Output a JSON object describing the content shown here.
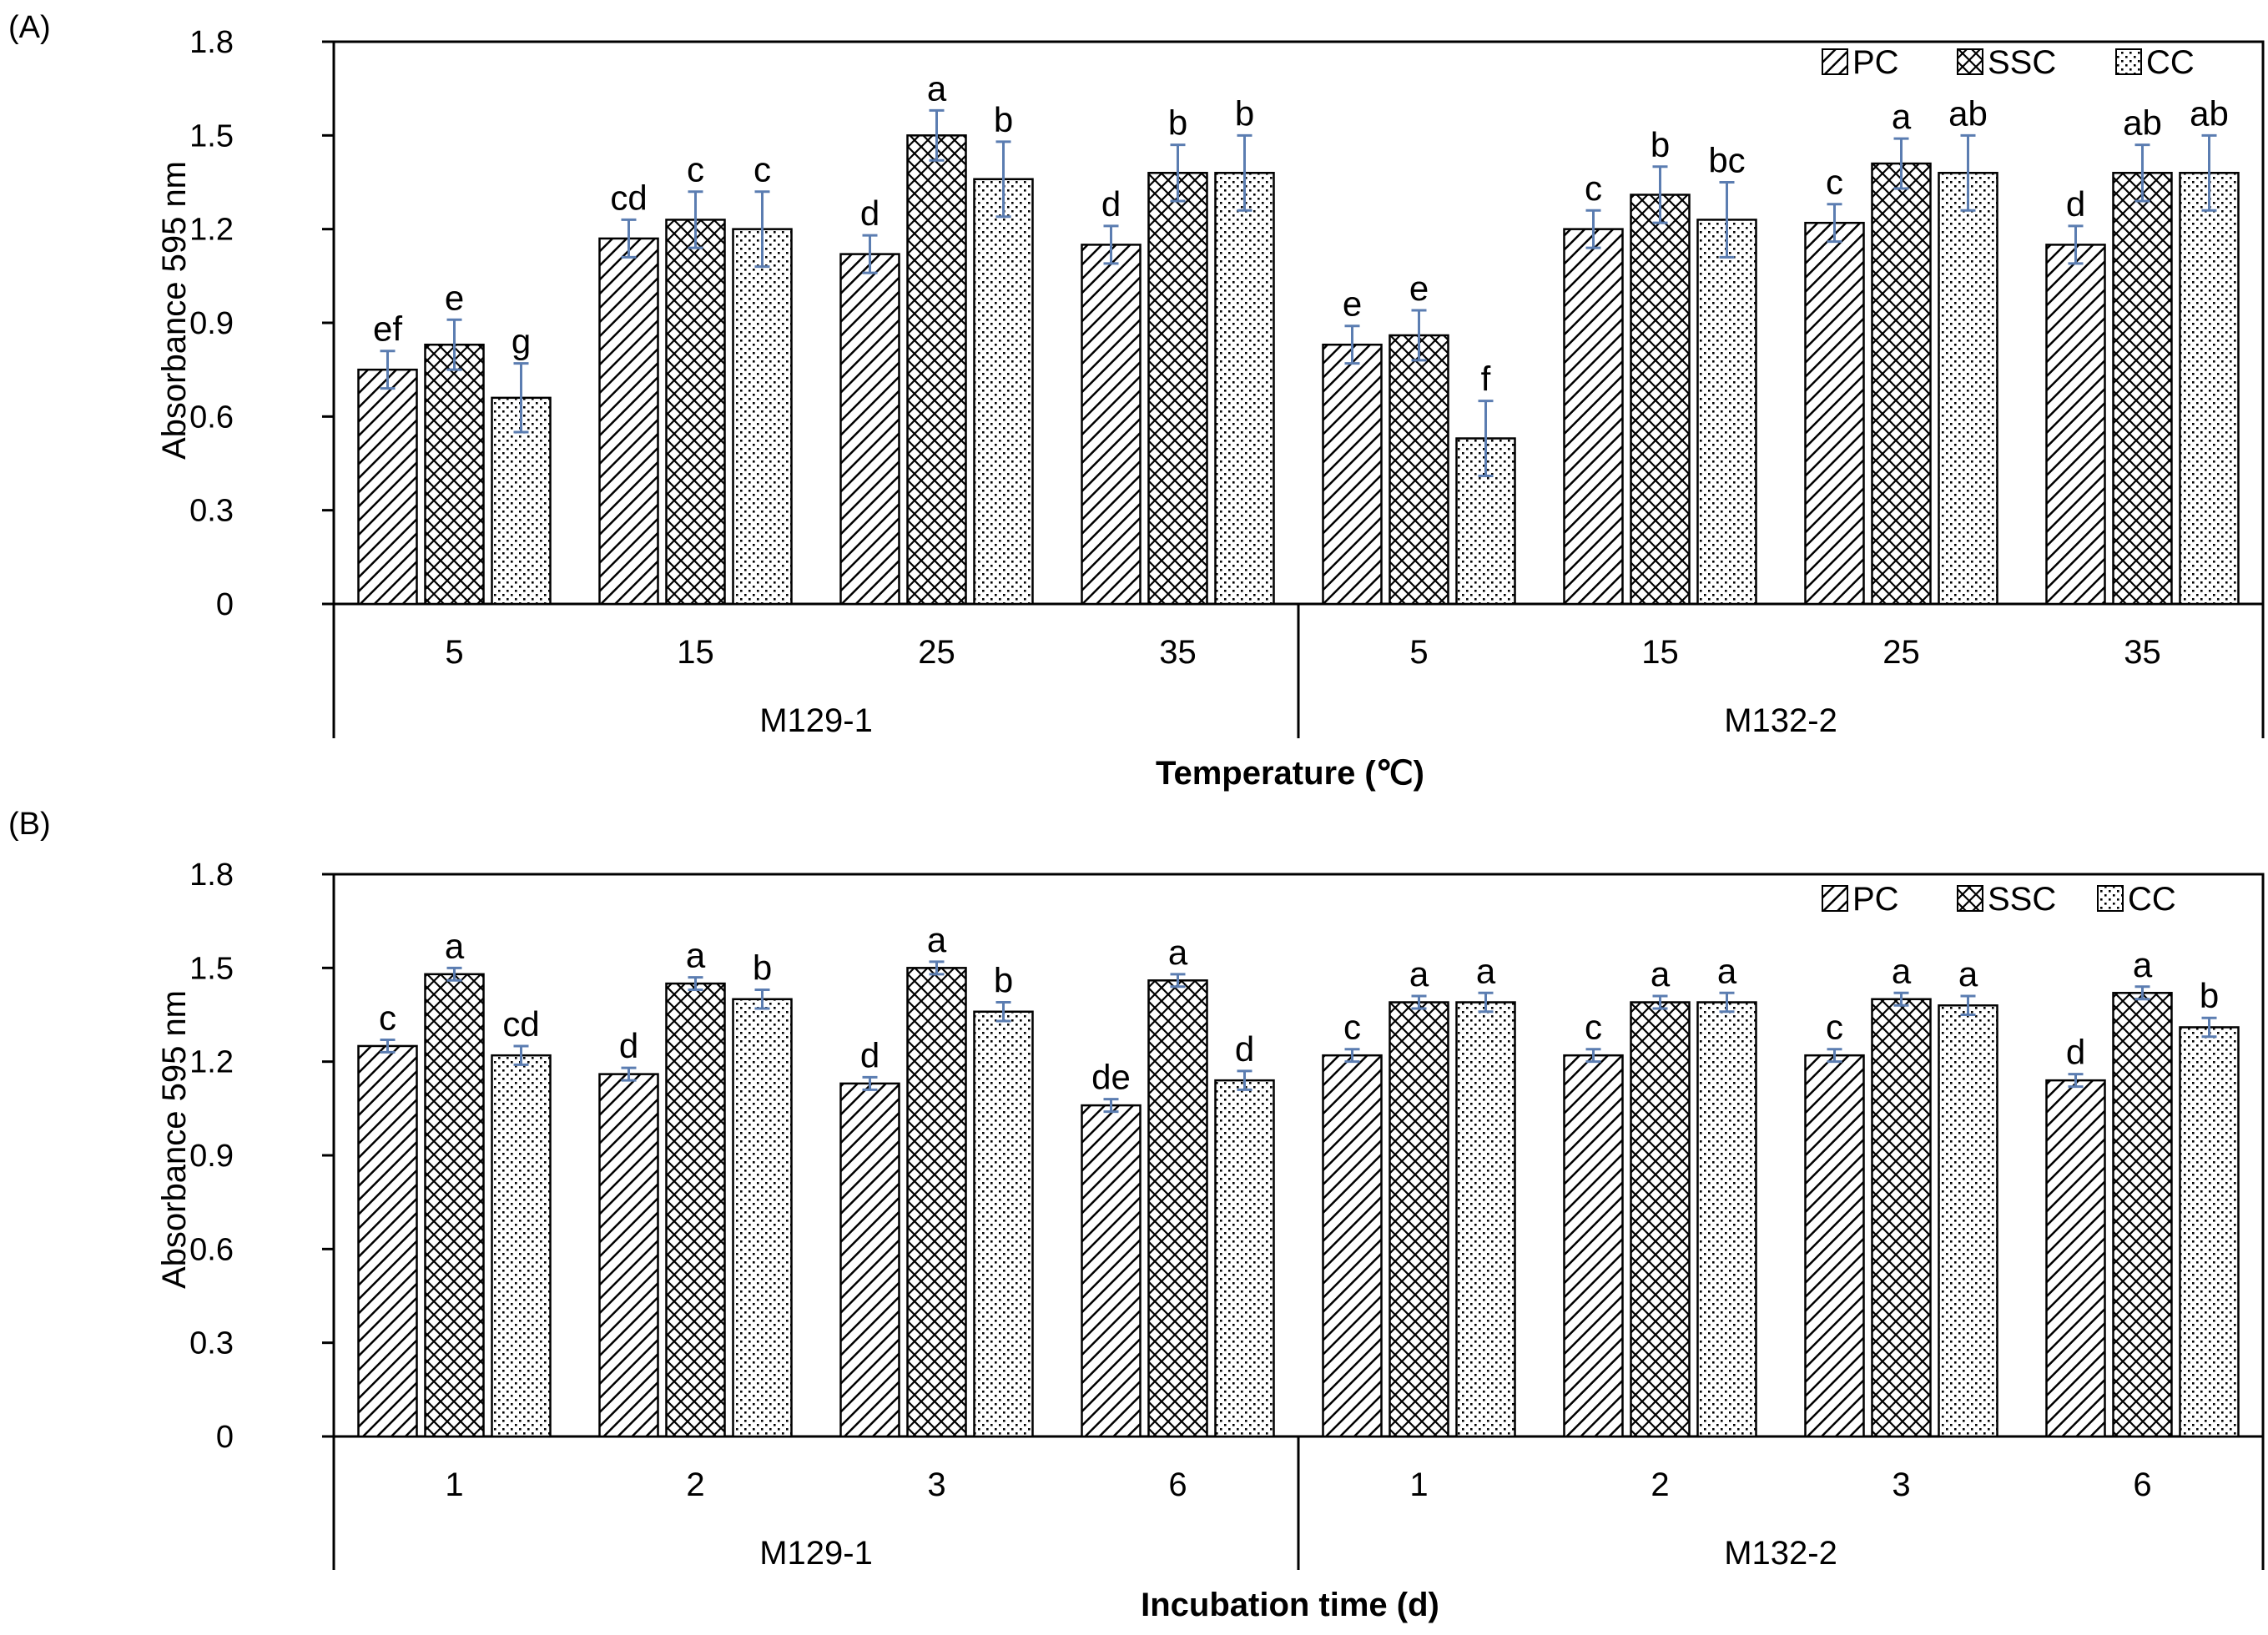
{
  "chart_data": [
    {
      "type": "bar",
      "panel_label": "(A)",
      "title": "",
      "xlabel": "Temperature (℃)",
      "ylabel": "Absorbance 595 nm",
      "ylim": [
        0,
        1.8
      ],
      "yticks": [
        "0",
        "0.3",
        "0.6",
        "0.9",
        "1.2",
        "1.5",
        "1.8"
      ],
      "groups": [
        {
          "name": "M129-1",
          "categories": [
            "5",
            "15",
            "25",
            "35"
          ]
        },
        {
          "name": "M132-2",
          "categories": [
            "5",
            "15",
            "25",
            "35"
          ]
        }
      ],
      "legend": [
        "PC",
        "SSC",
        "CC"
      ],
      "series": [
        {
          "name": "PC",
          "values": [
            0.75,
            1.17,
            1.12,
            1.15,
            0.83,
            1.2,
            1.22,
            1.15
          ],
          "errors": [
            0.06,
            0.06,
            0.06,
            0.06,
            0.06,
            0.06,
            0.06,
            0.06
          ],
          "letters": [
            "ef",
            "cd",
            "d",
            "d",
            "e",
            "c",
            "c",
            "d"
          ]
        },
        {
          "name": "SSC",
          "values": [
            0.83,
            1.23,
            1.5,
            1.38,
            0.86,
            1.31,
            1.41,
            1.38
          ],
          "errors": [
            0.08,
            0.09,
            0.08,
            0.09,
            0.08,
            0.09,
            0.08,
            0.09
          ],
          "letters": [
            "e",
            "c",
            "a",
            "b",
            "e",
            "b",
            "a",
            "ab"
          ]
        },
        {
          "name": "CC",
          "values": [
            0.66,
            1.2,
            1.36,
            1.38,
            0.53,
            1.23,
            1.38,
            1.38
          ],
          "errors": [
            0.11,
            0.12,
            0.12,
            0.12,
            0.12,
            0.12,
            0.12,
            0.12
          ],
          "letters": [
            "g",
            "c",
            "b",
            "b",
            "f",
            "bc",
            "ab",
            "ab"
          ]
        }
      ]
    },
    {
      "type": "bar",
      "panel_label": "(B)",
      "title": "",
      "xlabel": "Incubation time (d)",
      "ylabel": "Absorbance 595 nm",
      "ylim": [
        0,
        1.8
      ],
      "yticks": [
        "0",
        "0.3",
        "0.6",
        "0.9",
        "1.2",
        "1.5",
        "1.8"
      ],
      "groups": [
        {
          "name": "M129-1",
          "categories": [
            "1",
            "2",
            "3",
            "6"
          ]
        },
        {
          "name": "M132-2",
          "categories": [
            "1",
            "2",
            "3",
            "6"
          ]
        }
      ],
      "legend": [
        "PC",
        "SSC",
        "CC"
      ],
      "series": [
        {
          "name": "PC",
          "values": [
            1.25,
            1.16,
            1.13,
            1.06,
            1.22,
            1.22,
            1.22,
            1.14
          ],
          "errors": [
            0.02,
            0.02,
            0.02,
            0.02,
            0.02,
            0.02,
            0.02,
            0.02
          ],
          "letters": [
            "c",
            "d",
            "d",
            "de",
            "c",
            "c",
            "c",
            "d"
          ]
        },
        {
          "name": "SSC",
          "values": [
            1.48,
            1.45,
            1.5,
            1.46,
            1.39,
            1.39,
            1.4,
            1.42
          ],
          "errors": [
            0.02,
            0.02,
            0.02,
            0.02,
            0.02,
            0.02,
            0.02,
            0.02
          ],
          "letters": [
            "a",
            "a",
            "a",
            "a",
            "a",
            "a",
            "a",
            "a"
          ]
        },
        {
          "name": "CC",
          "values": [
            1.22,
            1.4,
            1.36,
            1.14,
            1.39,
            1.39,
            1.38,
            1.31
          ],
          "errors": [
            0.03,
            0.03,
            0.03,
            0.03,
            0.03,
            0.03,
            0.03,
            0.03
          ],
          "letters": [
            "cd",
            "b",
            "b",
            "d",
            "a",
            "a",
            "a",
            "b"
          ]
        }
      ]
    }
  ],
  "colors": {
    "axis": "#000000",
    "bar_fill": "#ffffff",
    "pattern_ink": "#000000",
    "error_bar": "#5b7db1"
  }
}
